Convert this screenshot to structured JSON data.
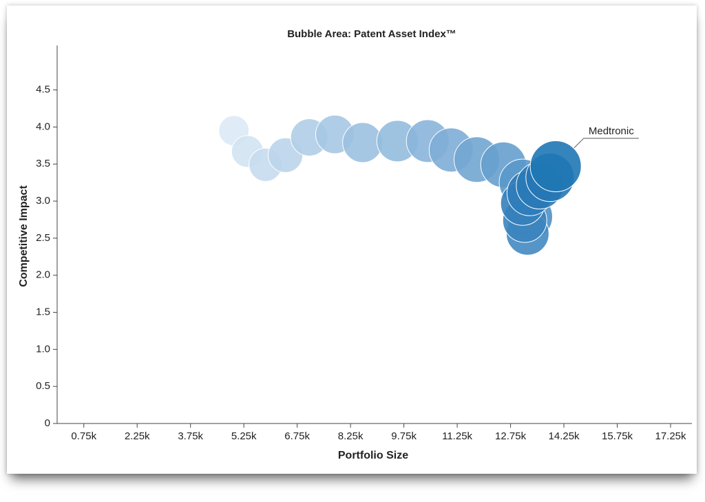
{
  "chart_data": {
    "type": "bubble",
    "title": "Bubble Area: Patent Asset Index™",
    "x_label": "Portfolio Size",
    "y_label": "Competitive Impact",
    "xlim": [
      0,
      17850
    ],
    "ylim": [
      0,
      5.1
    ],
    "xticks": [
      {
        "value": 750,
        "label": "0.75k"
      },
      {
        "value": 2250,
        "label": "2.25k"
      },
      {
        "value": 3750,
        "label": "3.75k"
      },
      {
        "value": 5250,
        "label": "5.25k"
      },
      {
        "value": 6750,
        "label": "6.75k"
      },
      {
        "value": 8250,
        "label": "8.25k"
      },
      {
        "value": 9750,
        "label": "9.75k"
      },
      {
        "value": 11250,
        "label": "11.25k"
      },
      {
        "value": 12750,
        "label": "12.75k"
      },
      {
        "value": 14250,
        "label": "14.25k"
      },
      {
        "value": 15750,
        "label": "15.75k"
      },
      {
        "value": 17250,
        "label": "17.25k"
      }
    ],
    "yticks": [
      0,
      0.5,
      {
        "value": 1,
        "label": "1.0"
      },
      1.5,
      {
        "value": 2,
        "label": "2.0"
      },
      2.5,
      {
        "value": 3,
        "label": "3.0"
      },
      3.5,
      {
        "value": 4,
        "label": "4.0"
      },
      4.5
    ],
    "x": [
      4970,
      5350,
      5860,
      6420,
      7090,
      7810,
      8590,
      9570,
      10420,
      11080,
      11800,
      12550,
      13090,
      13290,
      13230,
      13150,
      13090,
      13290,
      13570,
      13860,
      14020
    ],
    "y": [
      3.95,
      3.67,
      3.49,
      3.62,
      3.86,
      3.9,
      3.79,
      3.81,
      3.81,
      3.69,
      3.56,
      3.49,
      3.25,
      2.79,
      2.56,
      2.74,
      2.97,
      3.11,
      3.21,
      3.32,
      3.47
    ],
    "sizes": [
      4.8,
      5.3,
      5.8,
      6.3,
      7.3,
      7.8,
      8.4,
      9.0,
      9.6,
      10.2,
      10.9,
      10.9,
      11.6,
      10.9,
      9.6,
      10.2,
      10.2,
      10.9,
      11.6,
      12.3,
      13.7
    ],
    "colors": [
      "#dbe9f5",
      "#d2e3f2",
      "#c6dcee",
      "#bbd5eb",
      "#b0cee7",
      "#a6c8e4",
      "#9cc1e0",
      "#94bcdd",
      "#8ab5da",
      "#7eadd6",
      "#72a6d2",
      "#66a0ce",
      "#5a98ca",
      "#4e90c5",
      "#4389c1",
      "#3b84be",
      "#357fbb",
      "#2f7cb9",
      "#2a7ab7",
      "#2578b5",
      "#1f77b4"
    ],
    "point_labels": [
      null,
      null,
      null,
      null,
      null,
      null,
      null,
      null,
      null,
      null,
      null,
      null,
      null,
      null,
      null,
      null,
      null,
      null,
      null,
      null,
      "Medtronic"
    ]
  }
}
